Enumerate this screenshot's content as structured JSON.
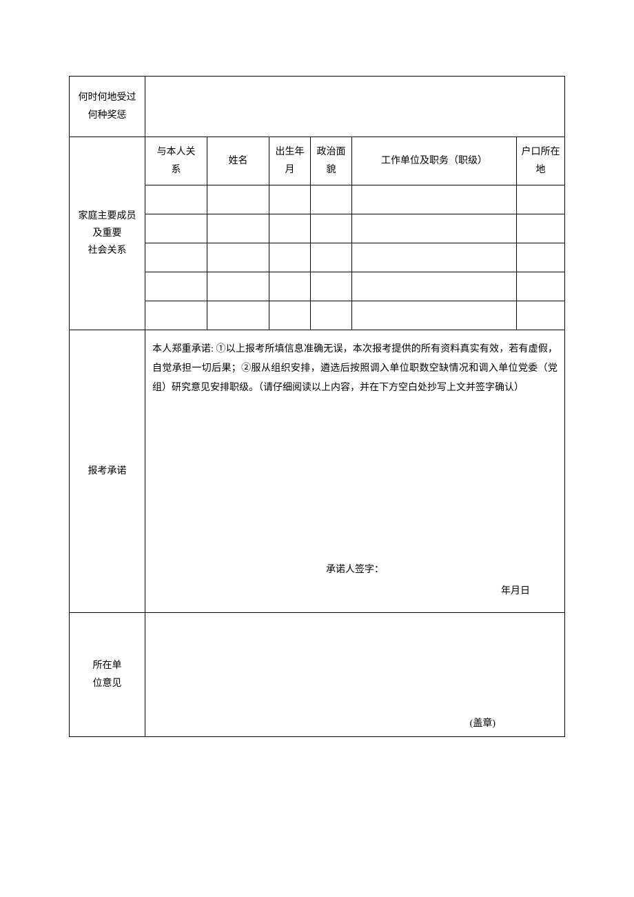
{
  "form": {
    "awards": {
      "label": "何时何地受过\n何种奖惩",
      "value": ""
    },
    "family": {
      "label": "家庭主要成员\n及重要\n社会关系",
      "headers": {
        "relation": "与本人关\n系",
        "name": "姓名",
        "birth": "出生年\n月",
        "politics": "政治面\n貌",
        "work": "工作单位及职务（职级）",
        "hukou": "户口所在\n地"
      },
      "rows": [
        {
          "relation": "",
          "name": "",
          "birth": "",
          "politics": "",
          "work": "",
          "hukou": ""
        },
        {
          "relation": "",
          "name": "",
          "birth": "",
          "politics": "",
          "work": "",
          "hukou": ""
        },
        {
          "relation": "",
          "name": "",
          "birth": "",
          "politics": "",
          "work": "",
          "hukou": ""
        },
        {
          "relation": "",
          "name": "",
          "birth": "",
          "politics": "",
          "work": "",
          "hukou": ""
        },
        {
          "relation": "",
          "name": "",
          "birth": "",
          "politics": "",
          "work": "",
          "hukou": ""
        }
      ]
    },
    "commitment": {
      "label": "报考承诺",
      "text": "本人郑重承诺: ①以上报考所填信息准确无误，本次报考提供的所有资料真实有效，若有虚假，自觉承担一切后果；②服从组织安排，遴选后按照调入单位职数空缺情况和调入单位党委（党组）研究意见安排职级。（请仔细阅读以上内容，并在下方空白处抄写上文并签字确认）",
      "signature_label": "承诺人签字：",
      "date_label": "年月日"
    },
    "unit_opinion": {
      "label": "所在单\n位意见",
      "stamp": "(盖章)"
    }
  },
  "style": {
    "border_color": "#000000",
    "background_color": "#ffffff",
    "font_size": 14
  }
}
